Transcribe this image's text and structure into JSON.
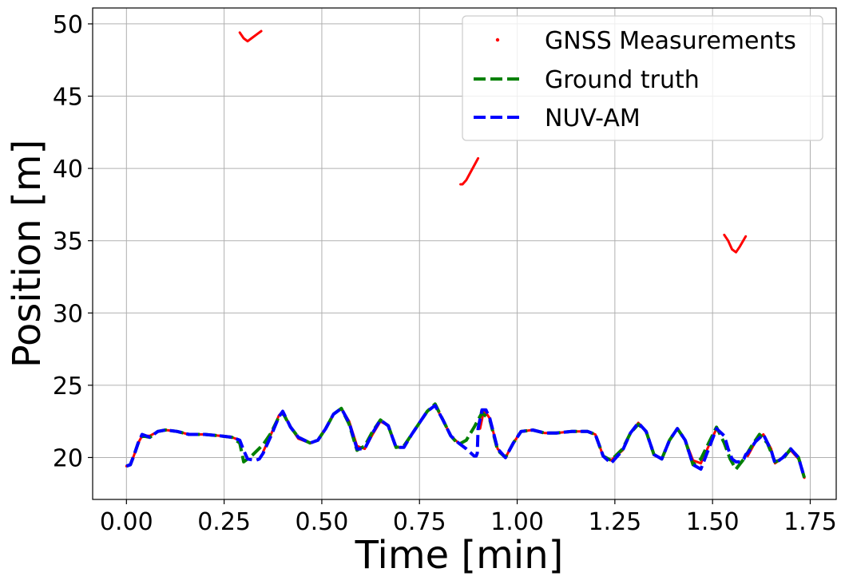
{
  "chart_data": {
    "type": "line",
    "xlabel": "Time [min]",
    "ylabel": "Position [m]",
    "xlim": [
      -0.0865,
      1.8165
    ],
    "ylim": [
      17.1,
      51.1
    ],
    "xticks": [
      0.0,
      0.25,
      0.5,
      0.75,
      1.0,
      1.25,
      1.5,
      1.75
    ],
    "xtick_labels": [
      "0.00",
      "0.25",
      "0.50",
      "0.75",
      "1.00",
      "1.25",
      "1.50",
      "1.75"
    ],
    "yticks": [
      20,
      25,
      30,
      35,
      40,
      45,
      50
    ],
    "ytick_labels": [
      "20",
      "25",
      "30",
      "35",
      "40",
      "45",
      "50"
    ],
    "grid": true,
    "legend_position": "top-right",
    "series": [
      {
        "name": "GNSS Measurements",
        "style": "points",
        "color": "#ff0000",
        "segments": [
          [
            [
              0.0,
              19.4
            ],
            [
              0.01,
              19.5
            ],
            [
              0.02,
              20.2
            ],
            [
              0.03,
              21.0
            ],
            [
              0.04,
              21.5
            ],
            [
              0.06,
              21.5
            ],
            [
              0.08,
              21.8
            ],
            [
              0.1,
              21.9
            ],
            [
              0.13,
              21.8
            ],
            [
              0.16,
              21.6
            ],
            [
              0.2,
              21.6
            ],
            [
              0.24,
              21.5
            ],
            [
              0.27,
              21.4
            ],
            [
              0.29,
              21.2
            ]
          ],
          [
            [
              0.29,
              49.4
            ],
            [
              0.3,
              49.0
            ],
            [
              0.31,
              48.8
            ],
            [
              0.32,
              49.0
            ],
            [
              0.335,
              49.3
            ],
            [
              0.345,
              49.5
            ]
          ],
          [
            [
              0.35,
              20.4
            ],
            [
              0.37,
              21.6
            ],
            [
              0.39,
              22.9
            ],
            [
              0.4,
              23.2
            ],
            [
              0.42,
              22.1
            ],
            [
              0.44,
              21.3
            ],
            [
              0.47,
              21.0
            ],
            [
              0.49,
              21.2
            ],
            [
              0.51,
              22.0
            ],
            [
              0.53,
              23.0
            ],
            [
              0.55,
              23.4
            ],
            [
              0.57,
              22.5
            ],
            [
              0.59,
              20.8
            ],
            [
              0.61,
              20.6
            ],
            [
              0.63,
              21.6
            ],
            [
              0.65,
              22.5
            ],
            [
              0.67,
              22.2
            ],
            [
              0.69,
              20.7
            ],
            [
              0.71,
              20.7
            ],
            [
              0.73,
              21.6
            ],
            [
              0.75,
              22.4
            ],
            [
              0.77,
              23.2
            ],
            [
              0.79,
              23.6
            ],
            [
              0.81,
              22.6
            ],
            [
              0.83,
              21.5
            ],
            [
              0.85,
              21.0
            ]
          ],
          [
            [
              0.855,
              38.9
            ],
            [
              0.86,
              38.9
            ],
            [
              0.87,
              39.2
            ],
            [
              0.88,
              39.7
            ],
            [
              0.89,
              40.2
            ],
            [
              0.9,
              40.7
            ]
          ],
          [
            [
              0.905,
              22.0
            ],
            [
              0.915,
              23.3
            ],
            [
              0.93,
              22.7
            ],
            [
              0.95,
              20.6
            ],
            [
              0.97,
              20.0
            ],
            [
              0.99,
              21.0
            ],
            [
              1.01,
              21.8
            ],
            [
              1.04,
              21.9
            ],
            [
              1.07,
              21.7
            ],
            [
              1.1,
              21.7
            ],
            [
              1.14,
              21.8
            ],
            [
              1.18,
              21.8
            ],
            [
              1.2,
              21.6
            ],
            [
              1.22,
              20.1
            ],
            [
              1.24,
              19.8
            ],
            [
              1.27,
              20.5
            ],
            [
              1.29,
              21.7
            ],
            [
              1.31,
              22.4
            ],
            [
              1.33,
              21.8
            ],
            [
              1.35,
              20.2
            ],
            [
              1.37,
              19.9
            ],
            [
              1.39,
              21.2
            ],
            [
              1.41,
              22.0
            ],
            [
              1.43,
              21.2
            ],
            [
              1.45,
              19.8
            ],
            [
              1.47,
              19.6
            ],
            [
              1.49,
              20.8
            ],
            [
              1.51,
              22.0
            ],
            [
              1.525,
              21.6
            ]
          ],
          [
            [
              1.53,
              35.4
            ],
            [
              1.54,
              35.0
            ],
            [
              1.55,
              34.4
            ],
            [
              1.56,
              34.2
            ],
            [
              1.57,
              34.6
            ],
            [
              1.585,
              35.3
            ]
          ],
          [
            [
              1.59,
              20.1
            ],
            [
              1.61,
              21.1
            ],
            [
              1.63,
              21.6
            ],
            [
              1.65,
              20.6
            ],
            [
              1.66,
              19.6
            ],
            [
              1.68,
              20.0
            ],
            [
              1.7,
              20.5
            ],
            [
              1.72,
              19.9
            ],
            [
              1.735,
              18.6
            ]
          ]
        ]
      },
      {
        "name": "Ground truth",
        "style": "dashed",
        "color": "#008000",
        "points": [
          [
            0.0,
            19.4
          ],
          [
            0.01,
            19.5
          ],
          [
            0.02,
            20.2
          ],
          [
            0.03,
            21.0
          ],
          [
            0.04,
            21.5
          ],
          [
            0.06,
            21.4
          ],
          [
            0.08,
            21.8
          ],
          [
            0.1,
            21.9
          ],
          [
            0.13,
            21.8
          ],
          [
            0.16,
            21.6
          ],
          [
            0.2,
            21.6
          ],
          [
            0.24,
            21.5
          ],
          [
            0.27,
            21.4
          ],
          [
            0.29,
            21.0
          ],
          [
            0.3,
            19.7
          ],
          [
            0.32,
            20.1
          ],
          [
            0.35,
            20.9
          ],
          [
            0.37,
            21.7
          ],
          [
            0.39,
            22.8
          ],
          [
            0.4,
            23.1
          ],
          [
            0.42,
            22.1
          ],
          [
            0.44,
            21.4
          ],
          [
            0.47,
            21.0
          ],
          [
            0.49,
            21.2
          ],
          [
            0.51,
            22.0
          ],
          [
            0.53,
            23.0
          ],
          [
            0.55,
            23.4
          ],
          [
            0.57,
            22.3
          ],
          [
            0.59,
            20.5
          ],
          [
            0.61,
            20.8
          ],
          [
            0.63,
            21.8
          ],
          [
            0.65,
            22.6
          ],
          [
            0.67,
            22.2
          ],
          [
            0.69,
            20.7
          ],
          [
            0.71,
            20.8
          ],
          [
            0.73,
            21.6
          ],
          [
            0.75,
            22.4
          ],
          [
            0.77,
            23.2
          ],
          [
            0.79,
            23.7
          ],
          [
            0.81,
            22.6
          ],
          [
            0.83,
            21.5
          ],
          [
            0.85,
            20.9
          ],
          [
            0.87,
            21.2
          ],
          [
            0.89,
            22.1
          ],
          [
            0.91,
            23.1
          ],
          [
            0.93,
            22.6
          ],
          [
            0.95,
            20.5
          ],
          [
            0.97,
            20.0
          ],
          [
            0.99,
            21.0
          ],
          [
            1.01,
            21.8
          ],
          [
            1.04,
            21.9
          ],
          [
            1.07,
            21.7
          ],
          [
            1.1,
            21.7
          ],
          [
            1.14,
            21.8
          ],
          [
            1.18,
            21.8
          ],
          [
            1.2,
            21.6
          ],
          [
            1.22,
            20.1
          ],
          [
            1.24,
            19.8
          ],
          [
            1.27,
            20.6
          ],
          [
            1.29,
            21.7
          ],
          [
            1.31,
            22.3
          ],
          [
            1.33,
            21.8
          ],
          [
            1.35,
            20.2
          ],
          [
            1.37,
            19.9
          ],
          [
            1.39,
            21.2
          ],
          [
            1.41,
            22.0
          ],
          [
            1.43,
            21.2
          ],
          [
            1.45,
            19.5
          ],
          [
            1.47,
            19.9
          ],
          [
            1.49,
            21.0
          ],
          [
            1.51,
            22.1
          ],
          [
            1.53,
            21.0
          ],
          [
            1.545,
            19.9
          ],
          [
            1.56,
            19.2
          ],
          [
            1.58,
            19.9
          ],
          [
            1.6,
            20.8
          ],
          [
            1.62,
            21.6
          ],
          [
            1.64,
            21.0
          ],
          [
            1.66,
            19.7
          ],
          [
            1.68,
            19.9
          ],
          [
            1.7,
            20.6
          ],
          [
            1.72,
            20.0
          ],
          [
            1.735,
            18.6
          ]
        ]
      },
      {
        "name": "NUV-AM",
        "style": "dashed",
        "color": "#0000ff",
        "points": [
          [
            0.0,
            19.4
          ],
          [
            0.01,
            19.5
          ],
          [
            0.02,
            20.2
          ],
          [
            0.03,
            21.0
          ],
          [
            0.04,
            21.6
          ],
          [
            0.06,
            21.4
          ],
          [
            0.08,
            21.8
          ],
          [
            0.1,
            21.9
          ],
          [
            0.13,
            21.8
          ],
          [
            0.16,
            21.6
          ],
          [
            0.2,
            21.6
          ],
          [
            0.24,
            21.5
          ],
          [
            0.27,
            21.4
          ],
          [
            0.29,
            21.2
          ],
          [
            0.3,
            20.5
          ],
          [
            0.31,
            19.9
          ],
          [
            0.33,
            19.8
          ],
          [
            0.34,
            19.9
          ],
          [
            0.35,
            20.3
          ],
          [
            0.37,
            21.5
          ],
          [
            0.39,
            22.8
          ],
          [
            0.4,
            23.2
          ],
          [
            0.42,
            22.1
          ],
          [
            0.44,
            21.4
          ],
          [
            0.47,
            21.0
          ],
          [
            0.49,
            21.2
          ],
          [
            0.51,
            22.0
          ],
          [
            0.53,
            23.0
          ],
          [
            0.55,
            23.4
          ],
          [
            0.57,
            22.4
          ],
          [
            0.59,
            20.6
          ],
          [
            0.61,
            20.6
          ],
          [
            0.63,
            21.7
          ],
          [
            0.65,
            22.6
          ],
          [
            0.67,
            22.2
          ],
          [
            0.69,
            20.7
          ],
          [
            0.71,
            20.7
          ],
          [
            0.73,
            21.6
          ],
          [
            0.75,
            22.4
          ],
          [
            0.77,
            23.2
          ],
          [
            0.79,
            23.6
          ],
          [
            0.81,
            22.6
          ],
          [
            0.83,
            21.5
          ],
          [
            0.85,
            21.0
          ],
          [
            0.87,
            20.6
          ],
          [
            0.89,
            20.1
          ],
          [
            0.895,
            20.1
          ],
          [
            0.898,
            20.3
          ],
          [
            0.9,
            22.0
          ],
          [
            0.91,
            23.3
          ],
          [
            0.92,
            23.3
          ],
          [
            0.93,
            22.7
          ],
          [
            0.95,
            20.6
          ],
          [
            0.97,
            20.0
          ],
          [
            0.99,
            21.0
          ],
          [
            1.01,
            21.8
          ],
          [
            1.04,
            21.9
          ],
          [
            1.07,
            21.7
          ],
          [
            1.1,
            21.7
          ],
          [
            1.14,
            21.8
          ],
          [
            1.18,
            21.8
          ],
          [
            1.2,
            21.6
          ],
          [
            1.22,
            20.1
          ],
          [
            1.24,
            19.6
          ],
          [
            1.27,
            20.5
          ],
          [
            1.29,
            21.7
          ],
          [
            1.31,
            22.4
          ],
          [
            1.33,
            21.8
          ],
          [
            1.35,
            20.2
          ],
          [
            1.37,
            19.9
          ],
          [
            1.39,
            21.2
          ],
          [
            1.41,
            22.0
          ],
          [
            1.43,
            21.2
          ],
          [
            1.45,
            19.5
          ],
          [
            1.47,
            19.2
          ],
          [
            1.49,
            20.6
          ],
          [
            1.51,
            22.0
          ],
          [
            1.53,
            21.5
          ],
          [
            1.54,
            20.6
          ],
          [
            1.55,
            19.9
          ],
          [
            1.56,
            19.7
          ],
          [
            1.57,
            19.7
          ],
          [
            1.58,
            19.9
          ],
          [
            1.585,
            20.2
          ],
          [
            1.59,
            20.3
          ],
          [
            1.61,
            21.1
          ],
          [
            1.63,
            21.6
          ],
          [
            1.65,
            20.5
          ],
          [
            1.66,
            19.6
          ],
          [
            1.68,
            20.0
          ],
          [
            1.7,
            20.6
          ],
          [
            1.72,
            20.0
          ],
          [
            1.735,
            18.6
          ]
        ]
      }
    ]
  }
}
